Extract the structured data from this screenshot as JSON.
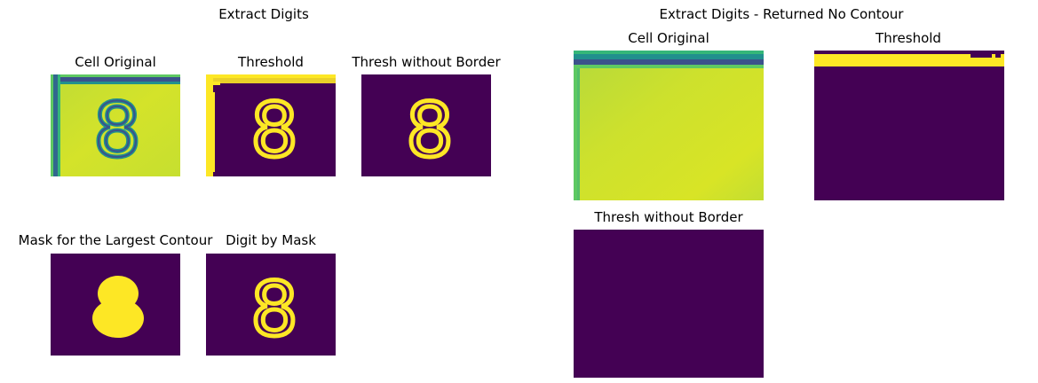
{
  "colors": {
    "background_dark": "#440154",
    "foreground_yellow": "#fde725",
    "cell_yellow": "#cfe12b",
    "digit_blue": "#3b528b",
    "digit_teal": "#21908d"
  },
  "left_figure": {
    "title": "Extract Digits",
    "panels": [
      {
        "title": "Cell Original",
        "digit": "8"
      },
      {
        "title": "Threshold",
        "digit": "8"
      },
      {
        "title": "Thresh without Border",
        "digit": "8"
      },
      {
        "title": "Mask for the Largest Contour",
        "digit": "8"
      },
      {
        "title": "Digit by Mask",
        "digit": "8"
      }
    ]
  },
  "right_figure": {
    "title": "Extract Digits - Returned No Contour",
    "panels": [
      {
        "title": "Cell Original"
      },
      {
        "title": "Threshold"
      },
      {
        "title": "Thresh without Border"
      }
    ]
  }
}
